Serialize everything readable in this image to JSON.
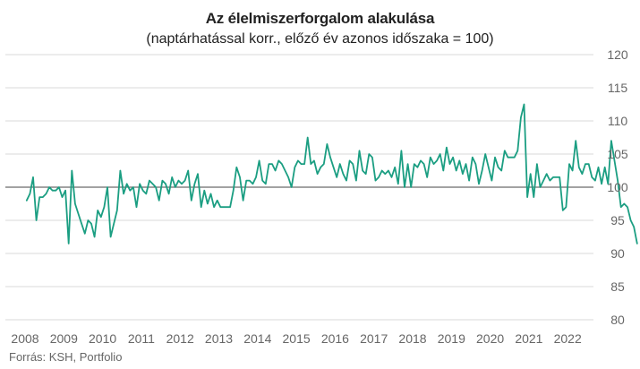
{
  "chart_data": {
    "type": "line",
    "title": "Az élelmiszerforgalom alakulása",
    "subtitle": "(naptárhatással korr., előző év azonos időszaka = 100)",
    "source": "Forrás: KSH, Portfolio",
    "xlabel": "",
    "ylabel": "",
    "ylim": [
      80,
      120
    ],
    "y_ticks": [
      80,
      85,
      90,
      95,
      100,
      105,
      110,
      115,
      120
    ],
    "y_axis_position": "right",
    "x_ticks": [
      "2008",
      "2009",
      "2010",
      "2011",
      "2012",
      "2013",
      "2014",
      "2015",
      "2016",
      "2017",
      "2018",
      "2019",
      "2020",
      "2021",
      "2022"
    ],
    "x_start": "2008-01",
    "grid": true,
    "reference_line": 100,
    "colors": {
      "line": "#1b9e82",
      "grid": "#d9d9d9",
      "reference": "#444444",
      "axis_text": "#666666"
    },
    "series": [
      {
        "values": [
          98.0,
          99.0,
          101.5,
          95.0,
          98.5,
          98.5,
          99.0,
          100.0,
          99.5,
          99.5,
          100.0,
          98.5,
          99.5,
          91.5,
          102.5,
          97.5,
          96.0,
          94.5,
          93.0,
          95.0,
          94.5,
          92.5,
          96.5,
          95.5,
          97.0,
          100.0,
          92.5,
          94.5,
          96.5,
          102.5,
          99.0,
          100.5,
          99.5,
          100.0,
          97.0,
          100.5,
          99.5,
          99.0,
          101.0,
          100.5,
          100.0,
          98.0,
          101.0,
          100.5,
          99.0,
          101.5,
          100.0,
          101.0,
          100.5,
          101.0,
          102.5,
          98.0,
          100.5,
          102.0,
          97.0,
          99.5,
          97.5,
          99.0,
          97.0,
          98.0,
          97.0,
          97.0,
          97.0,
          97.0,
          99.5,
          103.0,
          101.5,
          98.0,
          101.0,
          101.0,
          100.5,
          101.5,
          104.0,
          101.0,
          100.5,
          103.5,
          103.5,
          102.5,
          104.0,
          103.5,
          102.5,
          101.5,
          100.0,
          103.0,
          104.0,
          103.5,
          103.5,
          107.5,
          103.5,
          104.0,
          102.0,
          103.0,
          103.5,
          106.5,
          104.5,
          103.0,
          101.5,
          103.5,
          102.0,
          101.0,
          104.0,
          103.5,
          101.0,
          105.5,
          102.5,
          102.0,
          105.0,
          104.5,
          101.0,
          101.5,
          102.5,
          102.0,
          102.5,
          101.5,
          103.0,
          100.5,
          105.5,
          100.0,
          103.5,
          100.0,
          103.5,
          103.0,
          104.0,
          103.5,
          101.5,
          104.5,
          103.5,
          104.0,
          105.0,
          102.5,
          106.0,
          103.5,
          104.5,
          102.5,
          104.0,
          102.0,
          103.5,
          101.0,
          104.5,
          103.5,
          100.5,
          102.5,
          105.0,
          103.0,
          101.0,
          104.5,
          103.0,
          102.5,
          105.5,
          104.5,
          104.5,
          104.5,
          105.5,
          110.5,
          112.5,
          98.5,
          102.0,
          98.5,
          103.5,
          100.0,
          101.0,
          102.0,
          101.0,
          101.5,
          101.5,
          101.5,
          96.5,
          97.0,
          103.5,
          102.5,
          107.0,
          103.0,
          102.0,
          103.5,
          103.5,
          101.5,
          101.0,
          103.0,
          100.5,
          103.0,
          100.5,
          107.0,
          104.0,
          101.0,
          97.0,
          97.5,
          97.0,
          95.0,
          94.0,
          91.5
        ]
      }
    ]
  }
}
